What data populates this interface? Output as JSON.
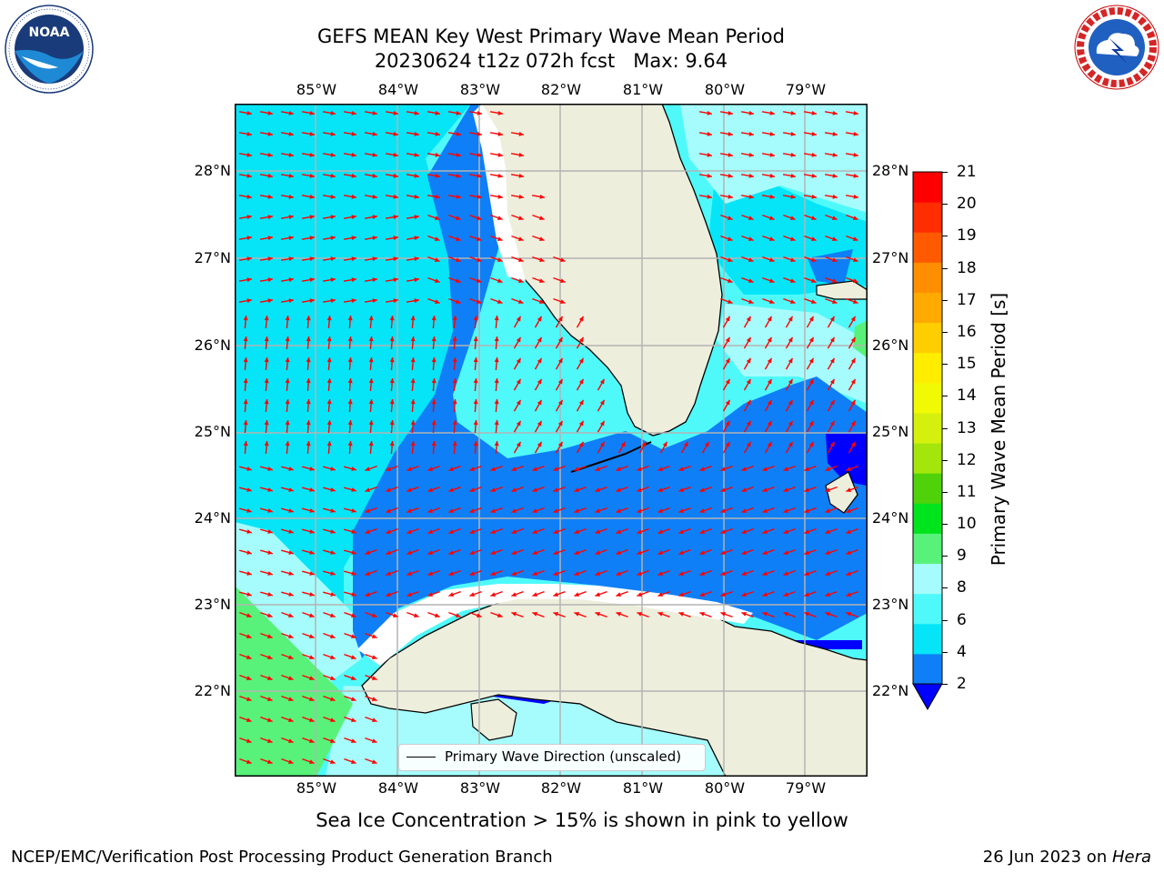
{
  "title": {
    "line1": "GEFS MEAN Key West Primary Wave Mean Period",
    "line2": "20230624 t12z 072h fcst   Max: 9.64"
  },
  "logos": {
    "left": {
      "icon": "noaa-logo",
      "text": "NOAA",
      "ring_text": "NATIONAL OCEANIC AND ATMOSPHERIC ADMINISTRATION · U.S. DEPARTMENT OF COMMERCE"
    },
    "right": {
      "icon": "nws-logo",
      "ring_text": "NATIONAL WEATHER SERVICE"
    }
  },
  "map": {
    "longitude_labels": [
      "85°W",
      "84°W",
      "83°W",
      "82°W",
      "81°W",
      "80°W",
      "79°W"
    ],
    "latitude_labels": [
      "28°N",
      "27°N",
      "26°N",
      "25°N",
      "24°N",
      "23°N",
      "22°N"
    ],
    "legend_label": "Primary Wave Direction (unscaled)",
    "land_color": "#eeeedd",
    "arrow_color": "#ff0000"
  },
  "colorbar": {
    "label": "Primary Wave Mean Period [s]",
    "ticks": [
      "2",
      "4",
      "6",
      "8",
      "9",
      "10",
      "11",
      "12",
      "13",
      "14",
      "15",
      "16",
      "17",
      "18",
      "19",
      "20",
      "21"
    ],
    "colors": [
      "#0f7ff7",
      "#05e5f7",
      "#4ff9fa",
      "#a6fcfc",
      "#58f27a",
      "#00e41e",
      "#50d20b",
      "#a4e60b",
      "#d6f00e",
      "#f1fa05",
      "#ffed00",
      "#ffce00",
      "#ffaa00",
      "#ff8f00",
      "#ff5a00",
      "#ff2d00",
      "#ff0000"
    ],
    "under_color": "#0000ff"
  },
  "subtitle": "Sea Ice Concentration > 15% is shown in pink to yellow",
  "footer": {
    "credit": "NCEP/EMC/Verification Post Processing Product Generation Branch",
    "date": "26 Jun 2023 on ",
    "host": "Hera"
  }
}
